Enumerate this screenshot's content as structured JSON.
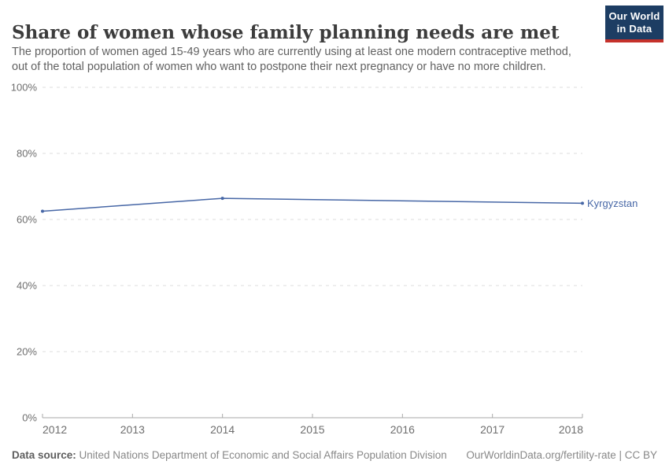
{
  "header": {
    "title": "Share of women whose family planning needs are met",
    "subtitle_lines": [
      "The proportion of women aged 15-49 years who are currently using at least one modern contraceptive method,",
      "out of the total population of women who want to postpone their next pregnancy or have no more children."
    ]
  },
  "logo": {
    "line1": "Our World",
    "line2": "in Data",
    "bg_color": "#1d3d63",
    "accent_color": "#c5312b"
  },
  "footer": {
    "source_label": "Data source:",
    "source_text": " United Nations Department of Economic and Social Affairs Population Division",
    "attribution": "OurWorldinData.org/fertility-rate | CC BY"
  },
  "chart_data": {
    "type": "line",
    "title": "Share of women whose family planning needs are met",
    "series": [
      {
        "name": "Kyrgyzstan",
        "color": "#4767a6",
        "x": [
          2012,
          2014,
          2018
        ],
        "values": [
          62.5,
          66.4,
          64.9
        ]
      }
    ],
    "xlim": [
      2012,
      2018
    ],
    "x_ticks": [
      2012,
      2013,
      2014,
      2015,
      2016,
      2017,
      2018
    ],
    "ylim": [
      0,
      100
    ],
    "y_ticks": [
      0,
      20,
      40,
      60,
      80,
      100
    ],
    "y_suffix": "%",
    "grid": "horizontal-dashed",
    "legend_position": "end-of-line-label",
    "colors": {
      "gridline": "#dcdcdc",
      "axis": "#a9a9a9",
      "tick_text": "#6e6e6e"
    }
  }
}
